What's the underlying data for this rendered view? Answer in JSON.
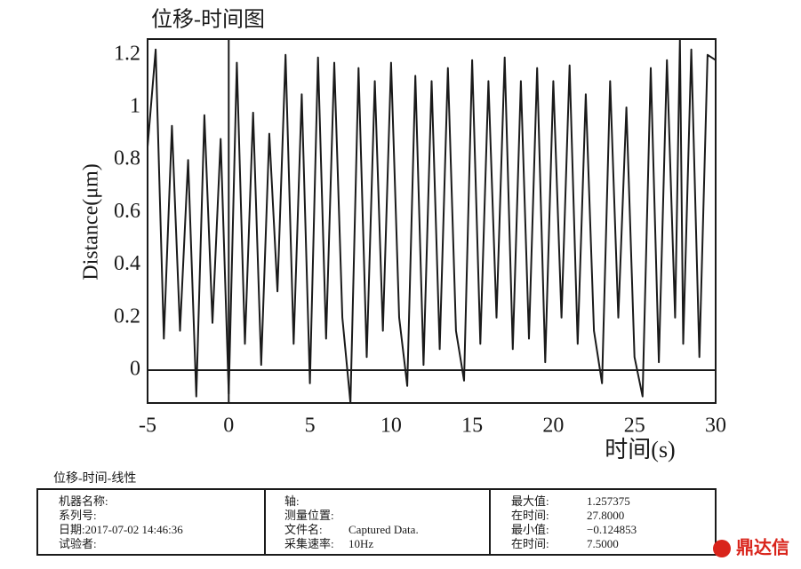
{
  "chart_data": {
    "type": "line",
    "title": "位移-时间图",
    "xlabel": "时间(s)",
    "ylabel": "Distance(μm)",
    "x": [
      -5,
      -4.5,
      -4,
      -3.5,
      -3,
      -2.5,
      -2,
      -1.5,
      -1,
      -0.5,
      0,
      0.5,
      1,
      1.5,
      2,
      2.5,
      3,
      3.5,
      4,
      4.5,
      5,
      5.5,
      6,
      6.5,
      7,
      7.5,
      8,
      8.5,
      9,
      9.5,
      10,
      10.5,
      11,
      11.5,
      12,
      12.5,
      13,
      13.5,
      14,
      14.5,
      15,
      15.5,
      16,
      16.5,
      17,
      17.5,
      18,
      18.5,
      19,
      19.5,
      20,
      20.5,
      21,
      21.5,
      22,
      22.5,
      23,
      23.5,
      24,
      24.5,
      25,
      25.5,
      26,
      26.5,
      27,
      27.5,
      27.8,
      28,
      28.5,
      29,
      29.5,
      30
    ],
    "series": [
      {
        "color": "#1a1a1a",
        "values": [
          0.85,
          1.22,
          0.12,
          0.93,
          0.15,
          0.8,
          -0.1,
          0.97,
          0.18,
          0.88,
          -0.09,
          1.17,
          0.1,
          0.98,
          0.02,
          0.9,
          0.3,
          1.2,
          0.1,
          1.05,
          -0.05,
          1.19,
          0.12,
          1.17,
          0.2,
          -0.124853,
          1.15,
          0.05,
          1.1,
          0.15,
          1.17,
          0.2,
          -0.06,
          1.12,
          0.02,
          1.1,
          0.08,
          1.15,
          0.15,
          -0.04,
          1.18,
          0.1,
          1.1,
          0.2,
          1.19,
          0.08,
          1.1,
          0.12,
          1.15,
          0.03,
          1.1,
          0.2,
          1.16,
          0.1,
          1.05,
          0.15,
          -0.05,
          1.1,
          0.2,
          1.0,
          0.05,
          -0.1,
          1.15,
          0.03,
          1.18,
          0.2,
          1.257375,
          0.1,
          1.22,
          0.05,
          1.2,
          1.18
        ]
      }
    ],
    "xlim": [
      -5,
      30
    ],
    "ylim": [
      -0.125,
      1.26
    ],
    "xticks": [
      -5,
      0,
      5,
      10,
      15,
      20,
      25,
      30
    ],
    "yticks": [
      0,
      0.2,
      0.4,
      0.6,
      0.8,
      1,
      1.2
    ]
  },
  "info_panel": {
    "caption": "位移-时间-线性",
    "columns": [
      [
        "机器名称:",
        "系列号:",
        "日期:2017-07-02 14:46:36",
        "试验者:"
      ],
      [
        [
          "轴:",
          ""
        ],
        [
          "测量位置:",
          ""
        ],
        [
          "文件名:",
          "Captured Data."
        ],
        [
          "采集速率:",
          "10Hz"
        ]
      ],
      [
        [
          "最大值:",
          "1.257375"
        ],
        [
          "在时间:",
          "27.8000"
        ],
        [
          "最小值:",
          "−0.124853"
        ],
        [
          "在时间:",
          "7.5000"
        ]
      ]
    ]
  },
  "watermark": "鼎达信"
}
